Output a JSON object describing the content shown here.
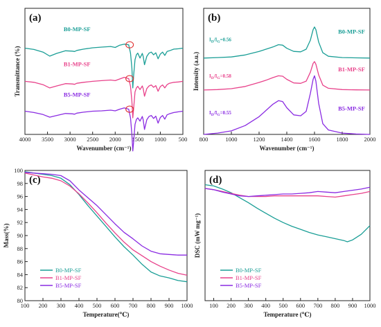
{
  "colors": {
    "B0": "#1a9e96",
    "B1": "#e8418a",
    "B5": "#8a2be2",
    "marker": "#e03030"
  },
  "chart_data": [
    {
      "panel": "(a)",
      "type": "line",
      "xlabel": "Wavenumber (cm⁻¹)",
      "ylabel": "Transmittance (%)",
      "xlim": [
        4000,
        500
      ],
      "x_ticks": [
        "4000",
        "3500",
        "3000",
        "2500",
        "2000",
        "1500",
        "1000",
        "500"
      ],
      "legend": "labels above each curve",
      "series": [
        {
          "name": "B0-MP-SF",
          "key": "B0",
          "x": [
            4000,
            3800,
            3600,
            3450,
            3300,
            3100,
            2950,
            2900,
            2850,
            2700,
            2500,
            2300,
            2100,
            2000,
            1900,
            1800,
            1700,
            1660,
            1630,
            1610,
            1590,
            1560,
            1530,
            1500,
            1450,
            1400,
            1380,
            1350,
            1300,
            1250,
            1200,
            1150,
            1100,
            1050,
            1000,
            950,
            900,
            850,
            800,
            700,
            600,
            500
          ],
          "y": [
            0,
            -0.4,
            -1.2,
            -2.4,
            -1.6,
            -0.8,
            -0.9,
            -1.0,
            -0.7,
            -0.3,
            0.1,
            0.3,
            0.5,
            0.2,
            0.9,
            1.2,
            1.0,
            -1.5,
            -6,
            -12,
            -8,
            -3.5,
            -2,
            -1.5,
            -3,
            -1.6,
            -2.5,
            -5,
            -2.5,
            -1.5,
            -1.2,
            -2,
            -1.4,
            -3.2,
            -1.8,
            -1.2,
            -2.2,
            -1,
            -0.8,
            -0.3,
            -0.2,
            0
          ]
        },
        {
          "name": "B1-MP-SF",
          "key": "B1",
          "x": [
            4000,
            3800,
            3600,
            3450,
            3300,
            3100,
            2950,
            2900,
            2850,
            2700,
            2500,
            2300,
            2100,
            2000,
            1900,
            1800,
            1700,
            1660,
            1630,
            1610,
            1590,
            1560,
            1530,
            1500,
            1450,
            1400,
            1380,
            1350,
            1300,
            1250,
            1200,
            1150,
            1100,
            1050,
            1000,
            950,
            900,
            850,
            800,
            700,
            600,
            500
          ],
          "y": [
            0,
            -0.3,
            -1.0,
            -2.0,
            -1.4,
            -0.7,
            -0.8,
            -0.9,
            -0.6,
            -0.3,
            0.0,
            0.2,
            0.4,
            0.2,
            0.7,
            1.2,
            0.8,
            -1.5,
            -6,
            -11,
            -8,
            -3.2,
            -2,
            -1.5,
            -2.5,
            -1.4,
            -2.2,
            -4.5,
            -2.2,
            -1.4,
            -1.1,
            -1.8,
            -1.3,
            -3.0,
            -1.6,
            -1.1,
            -2.0,
            -1.0,
            -0.6,
            -0.3,
            -0.2,
            0
          ]
        },
        {
          "name": "B5-MP-SF",
          "key": "B5",
          "x": [
            4000,
            3800,
            3600,
            3450,
            3300,
            3100,
            2950,
            2900,
            2850,
            2700,
            2500,
            2300,
            2100,
            2000,
            1900,
            1800,
            1700,
            1660,
            1630,
            1610,
            1590,
            1560,
            1530,
            1500,
            1450,
            1400,
            1380,
            1350,
            1300,
            1250,
            1200,
            1150,
            1100,
            1050,
            1000,
            950,
            900,
            850,
            800,
            700,
            600,
            500
          ],
          "y": [
            0,
            -0.4,
            -1.0,
            -1.8,
            -1.3,
            -0.7,
            -0.8,
            -0.9,
            -0.6,
            -0.3,
            0.0,
            0.1,
            0.3,
            0.1,
            0.6,
            1.0,
            0.6,
            -2,
            -7,
            -12,
            -9,
            -4,
            -2.5,
            -2,
            -3,
            -1.6,
            -2.6,
            -5.5,
            -2.6,
            -1.6,
            -1.3,
            -2.2,
            -1.5,
            -3.6,
            -1.9,
            -1.3,
            -2.4,
            -1.1,
            -0.8,
            -0.4,
            -0.2,
            0
          ]
        }
      ],
      "markers": [
        1680
      ]
    },
    {
      "panel": "(b)",
      "type": "line",
      "xlabel": "Wavenumber (cm⁻¹)",
      "ylabel": "Intensity (a.u.)",
      "xlim": [
        800,
        2000
      ],
      "x_ticks": [
        "800",
        "1000",
        "1200",
        "1400",
        "1600",
        "1800",
        "2000"
      ],
      "legend": "labels right of each curve",
      "annotations": [
        {
          "label": "I",
          "sub": "D",
          "mid": "/I",
          "sub2": "G",
          "value": "=0.56"
        },
        {
          "label": "I",
          "sub": "D",
          "mid": "/I",
          "sub2": "G",
          "value": "=0.58"
        },
        {
          "label": "I",
          "sub": "D",
          "mid": "/I",
          "sub2": "G",
          "value": "=0.55"
        }
      ],
      "series": [
        {
          "name": "B0-MP-SF",
          "key": "B0",
          "x": [
            800,
            900,
            1000,
            1100,
            1200,
            1250,
            1300,
            1340,
            1370,
            1400,
            1450,
            1500,
            1540,
            1570,
            1590,
            1600,
            1610,
            1630,
            1660,
            1700,
            1800,
            1900,
            2000
          ],
          "y": [
            0,
            0.05,
            0.12,
            0.35,
            0.75,
            1.0,
            1.25,
            1.5,
            1.45,
            1.1,
            0.75,
            0.7,
            1.0,
            2.0,
            3.2,
            3.5,
            3.2,
            1.8,
            0.6,
            0.2,
            0.05,
            0.02,
            0
          ]
        },
        {
          "name": "B1-MP-SF",
          "key": "B1",
          "x": [
            800,
            900,
            1000,
            1100,
            1200,
            1250,
            1300,
            1340,
            1370,
            1400,
            1450,
            1500,
            1540,
            1570,
            1590,
            1600,
            1610,
            1630,
            1660,
            1700,
            1800,
            1900,
            2000
          ],
          "y": [
            0,
            0.05,
            0.15,
            0.4,
            0.85,
            1.1,
            1.4,
            1.6,
            1.55,
            1.2,
            0.8,
            0.75,
            1.0,
            2.0,
            3.0,
            3.2,
            2.9,
            1.7,
            0.55,
            0.2,
            0.05,
            0.02,
            0
          ]
        },
        {
          "name": "B5-MP-SF",
          "key": "B5",
          "x": [
            800,
            900,
            1000,
            1100,
            1200,
            1250,
            1300,
            1340,
            1370,
            1400,
            1450,
            1500,
            1540,
            1570,
            1590,
            1600,
            1610,
            1630,
            1660,
            1700,
            1800,
            1900,
            2000
          ],
          "y": [
            0,
            0.15,
            0.4,
            1.0,
            2.0,
            2.7,
            3.4,
            3.8,
            3.7,
            3.0,
            2.2,
            2.1,
            2.6,
            4.6,
            6.2,
            6.6,
            6.0,
            3.5,
            1.2,
            0.5,
            0.15,
            0.05,
            0
          ]
        }
      ]
    },
    {
      "panel": "(c)",
      "type": "line",
      "xlabel": "Temperature(℃)",
      "ylabel": "Mass(%)",
      "xlim": [
        100,
        1000
      ],
      "ylim": [
        80,
        100
      ],
      "x_ticks": [
        "100",
        "200",
        "300",
        "400",
        "500",
        "600",
        "700",
        "800",
        "900",
        "1000"
      ],
      "y_ticks": [
        "80",
        "82",
        "84",
        "86",
        "88",
        "90",
        "92",
        "94",
        "96",
        "98",
        "100"
      ],
      "legend": "bottom-left",
      "series": [
        {
          "name": "B0-MP-SF",
          "key": "B0",
          "x": [
            100,
            150,
            200,
            250,
            300,
            350,
            400,
            450,
            500,
            550,
            600,
            650,
            700,
            750,
            800,
            850,
            900,
            950,
            1000
          ],
          "y": [
            99.8,
            99.6,
            99.4,
            99.2,
            98.8,
            97.8,
            96.3,
            94.6,
            93.0,
            91.4,
            89.8,
            88.3,
            87.0,
            85.6,
            84.4,
            83.8,
            83.5,
            83.1,
            82.9
          ]
        },
        {
          "name": "B1-MP-SF",
          "key": "B1",
          "x": [
            100,
            150,
            200,
            250,
            300,
            350,
            400,
            450,
            500,
            550,
            600,
            650,
            700,
            750,
            800,
            850,
            900,
            950,
            1000
          ],
          "y": [
            99.6,
            99.3,
            99.0,
            98.8,
            98.4,
            97.6,
            96.4,
            95.0,
            93.5,
            91.9,
            90.4,
            89.0,
            87.8,
            86.9,
            86.0,
            85.3,
            84.7,
            84.2,
            83.9
          ]
        },
        {
          "name": "B5-MP-SF",
          "key": "B5",
          "x": [
            100,
            150,
            200,
            250,
            300,
            350,
            400,
            450,
            500,
            550,
            600,
            650,
            700,
            750,
            800,
            850,
            900,
            950,
            1000
          ],
          "y": [
            99.7,
            99.6,
            99.5,
            99.4,
            99.2,
            98.4,
            97.0,
            95.8,
            94.6,
            93.2,
            91.8,
            90.5,
            89.5,
            88.4,
            87.6,
            87.2,
            87.1,
            87.0,
            87.0
          ]
        }
      ]
    },
    {
      "panel": "(d)",
      "type": "line",
      "xlabel": "Temperature (℃)",
      "ylabel": "DSC (mW mg⁻¹)",
      "xlim": [
        50,
        1000
      ],
      "x_ticks": [
        "100",
        "200",
        "300",
        "400",
        "500",
        "600",
        "700",
        "800",
        "900",
        "1000"
      ],
      "legend": "bottom-left",
      "series": [
        {
          "name": "B0-MP-SF",
          "key": "B0",
          "x": [
            50,
            100,
            150,
            200,
            250,
            300,
            350,
            400,
            450,
            500,
            550,
            600,
            650,
            700,
            750,
            800,
            850,
            870,
            900,
            950,
            1000
          ],
          "y": [
            0.92,
            0.9,
            0.85,
            0.79,
            0.71,
            0.63,
            0.54,
            0.46,
            0.38,
            0.31,
            0.25,
            0.2,
            0.15,
            0.11,
            0.08,
            0.05,
            0.02,
            0.0,
            0.03,
            0.12,
            0.26
          ]
        },
        {
          "name": "B1-MP-SF",
          "key": "B1",
          "x": [
            50,
            100,
            150,
            200,
            250,
            300,
            350,
            400,
            450,
            500,
            550,
            600,
            650,
            700,
            750,
            800,
            850,
            900,
            950,
            1000
          ],
          "y": [
            0.86,
            0.84,
            0.81,
            0.78,
            0.75,
            0.73,
            0.73,
            0.73,
            0.74,
            0.74,
            0.74,
            0.74,
            0.74,
            0.74,
            0.73,
            0.72,
            0.74,
            0.76,
            0.78,
            0.81
          ]
        },
        {
          "name": "B5-MP-SF",
          "key": "B5",
          "x": [
            50,
            100,
            150,
            200,
            250,
            300,
            350,
            400,
            450,
            500,
            550,
            600,
            650,
            700,
            750,
            800,
            850,
            900,
            950,
            1000
          ],
          "y": [
            0.86,
            0.84,
            0.8,
            0.77,
            0.74,
            0.73,
            0.74,
            0.75,
            0.76,
            0.77,
            0.77,
            0.78,
            0.79,
            0.81,
            0.8,
            0.79,
            0.81,
            0.83,
            0.85,
            0.88
          ]
        }
      ]
    }
  ]
}
